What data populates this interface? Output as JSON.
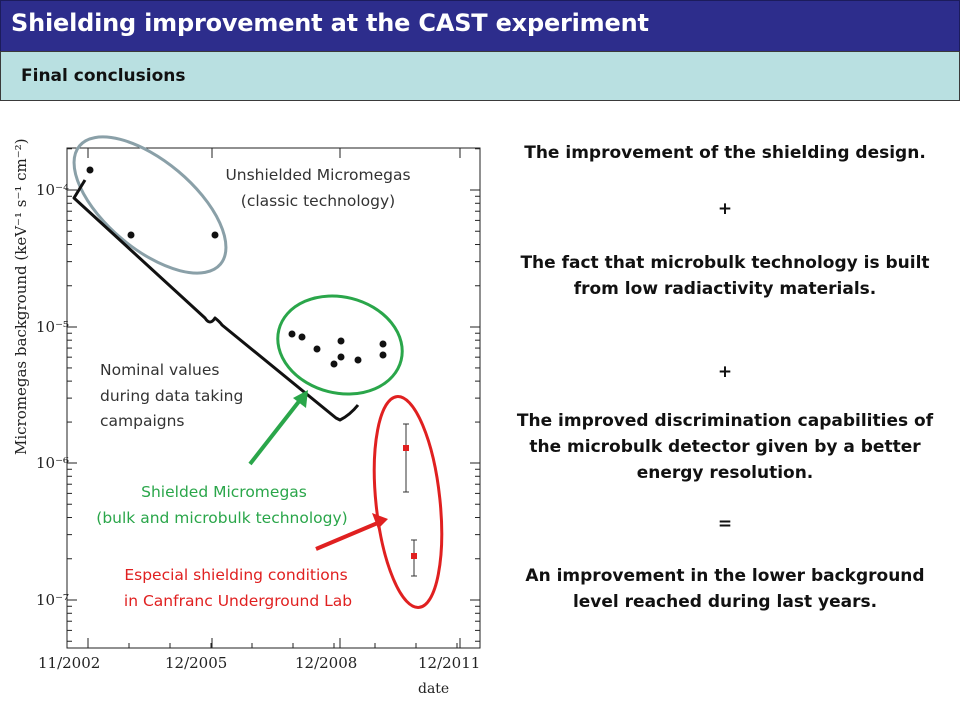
{
  "slide": {
    "title": "Shielding improvement at the CAST experiment",
    "subtitle": "Final conclusions"
  },
  "figure": {
    "ylabel_text": "Micromegas background (keV⁻¹ s⁻¹ cm⁻²)",
    "xlabel": "date",
    "x_ticks": [
      "11/2002",
      "12/2005",
      "12/2008",
      "12/2011"
    ],
    "y_ticks": [
      "10⁻⁴",
      "10⁻⁵",
      "10⁻⁶",
      "10⁻⁷"
    ],
    "annotations": {
      "unshielded_line1": "Unshielded Micromegas",
      "unshielded_line2": "(classic technology)",
      "nominal_line1": "Nominal values",
      "nominal_line2": "during data taking",
      "nominal_line3": "campaigns",
      "shielded_line1": "Shielded Micromegas",
      "shielded_line2": "(bulk and microbulk technology)",
      "especial_line1": "Especial shielding conditions",
      "especial_line2": "in Canfranc Underground Lab"
    },
    "colors": {
      "unshielded": "#8aa0a8",
      "shielded": "#2aa64a",
      "especial": "#e02020"
    }
  },
  "conclusions": {
    "c1": "The improvement of the shielding design.",
    "op1": "+",
    "c2": "The fact that microbulk technology is built from low radiactivity materials.",
    "op2": "+",
    "c3": "The improved discrimination capabilities of the microbulk detector given by a better energy resolution.",
    "op3": "=",
    "c4": "An improvement in the lower background level reached during last years."
  },
  "colors": {
    "title_bg": "#2d2d8c",
    "subtitle_bg": "#b9e0e1"
  }
}
